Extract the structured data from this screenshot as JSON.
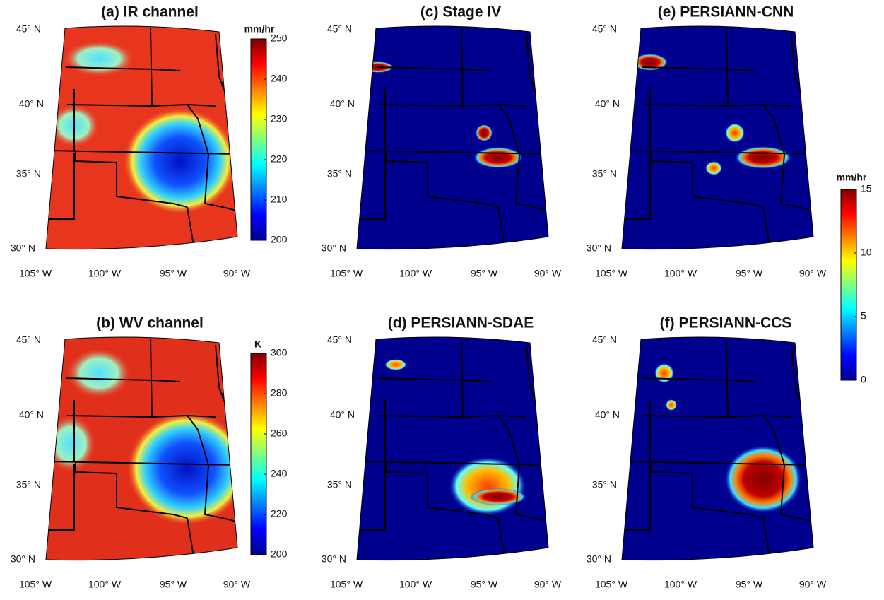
{
  "panels": [
    {
      "title": "(a) IR channel",
      "lat_labels": [
        "45° N",
        "40° N",
        "35° N",
        "30° N"
      ],
      "lon_labels": [
        "105° W",
        "100° W",
        "95° W",
        "90° W"
      ]
    },
    {
      "title": "(b) WV channel",
      "lat_labels": [
        "45° N",
        "40° N",
        "35° N",
        "30° N"
      ],
      "lon_labels": [
        "105° W",
        "100° W",
        "95° W",
        "90° W"
      ]
    },
    {
      "title": "(c) Stage IV",
      "lat_labels": [
        "45° N",
        "40° N",
        "35° N",
        "30° N"
      ],
      "lon_labels": [
        "105° W",
        "100° W",
        "95° W",
        "90° W"
      ]
    },
    {
      "title": "(d) PERSIANN-SDAE",
      "lat_labels": [
        "45° N",
        "40° N",
        "35° N",
        "30° N"
      ],
      "lon_labels": [
        "105° W",
        "100° W",
        "95° W",
        "90° W"
      ]
    },
    {
      "title": "(e) PERSIANN-CNN",
      "lat_labels": [
        "45° N",
        "40° N",
        "35° N",
        "30° N"
      ],
      "lon_labels": [
        "105° W",
        "100° W",
        "95° W",
        "90° W"
      ]
    },
    {
      "title": "(f) PERSIANN-CCS",
      "lat_labels": [
        "45° N",
        "40° N",
        "35° N",
        "30° N"
      ],
      "lon_labels": [
        "105° W",
        "100° W",
        "95° W",
        "90° W"
      ]
    }
  ],
  "colorbars": [
    {
      "unit": "mm/hr",
      "lim": [
        200,
        250
      ],
      "ticks": [
        200,
        210,
        220,
        230,
        240,
        250
      ]
    },
    {
      "unit": "K",
      "lim": [
        200,
        300
      ],
      "ticks": [
        200,
        220,
        240,
        260,
        280,
        300
      ]
    },
    {
      "unit": "mm/hr",
      "lim": [
        0,
        15
      ],
      "ticks": [
        0,
        5,
        10,
        15
      ]
    }
  ]
}
